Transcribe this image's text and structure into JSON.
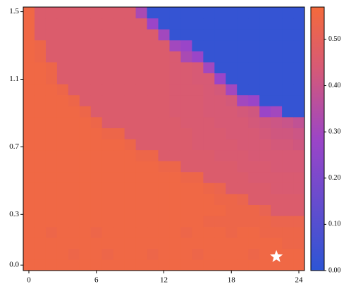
{
  "chart_data": {
    "type": "heatmap",
    "x": [
      0,
      1,
      2,
      3,
      4,
      5,
      6,
      7,
      8,
      9,
      10,
      11,
      12,
      13,
      14,
      15,
      16,
      17,
      18,
      19,
      20,
      21,
      22,
      23,
      24
    ],
    "y": [
      0,
      0.065,
      0.13,
      0.195,
      0.26,
      0.325,
      0.39,
      0.455,
      0.52,
      0.585,
      0.65,
      0.715,
      0.78,
      0.845,
      0.91,
      0.975,
      1.04,
      1.105,
      1.17,
      1.235,
      1.3,
      1.365,
      1.43,
      1.495
    ],
    "z": [
      [
        0.55,
        0.55,
        0.55,
        0.55,
        0.55,
        0.55,
        0.55,
        0.55,
        0.55,
        0.55,
        0.55,
        0.55,
        0.55,
        0.55,
        0.55,
        0.55,
        0.55,
        0.55,
        0.55,
        0.55,
        0.55,
        0.55,
        0.55,
        0.55,
        0.55
      ],
      [
        0.55,
        0.55,
        0.55,
        0.55,
        0.54,
        0.55,
        0.55,
        0.54,
        0.55,
        0.55,
        0.55,
        0.54,
        0.55,
        0.55,
        0.55,
        0.54,
        0.55,
        0.55,
        0.55,
        0.55,
        0.54,
        0.55,
        0.55,
        0.55,
        0.55
      ],
      [
        0.55,
        0.55,
        0.55,
        0.55,
        0.55,
        0.55,
        0.55,
        0.55,
        0.55,
        0.55,
        0.55,
        0.55,
        0.55,
        0.55,
        0.55,
        0.55,
        0.55,
        0.55,
        0.55,
        0.55,
        0.55,
        0.55,
        0.55,
        0.54,
        0.54
      ],
      [
        0.55,
        0.55,
        0.54,
        0.55,
        0.55,
        0.55,
        0.54,
        0.55,
        0.55,
        0.55,
        0.55,
        0.55,
        0.55,
        0.55,
        0.54,
        0.55,
        0.55,
        0.55,
        0.54,
        0.55,
        0.55,
        0.54,
        0.54,
        0.54,
        0.54
      ],
      [
        0.55,
        0.55,
        0.55,
        0.55,
        0.55,
        0.55,
        0.55,
        0.55,
        0.55,
        0.55,
        0.55,
        0.55,
        0.55,
        0.55,
        0.55,
        0.55,
        0.54,
        0.54,
        0.54,
        0.54,
        0.54,
        0.54,
        0.53,
        0.53,
        0.53
      ],
      [
        0.55,
        0.55,
        0.55,
        0.55,
        0.55,
        0.55,
        0.55,
        0.55,
        0.55,
        0.55,
        0.55,
        0.55,
        0.55,
        0.55,
        0.55,
        0.55,
        0.55,
        0.55,
        0.54,
        0.54,
        0.54,
        0.52,
        0.46,
        0.46,
        0.46
      ],
      [
        0.55,
        0.55,
        0.55,
        0.55,
        0.55,
        0.55,
        0.55,
        0.55,
        0.55,
        0.55,
        0.55,
        0.55,
        0.55,
        0.55,
        0.55,
        0.55,
        0.55,
        0.54,
        0.54,
        0.53,
        0.46,
        0.46,
        0.46,
        0.46,
        0.46
      ],
      [
        0.55,
        0.55,
        0.55,
        0.55,
        0.55,
        0.55,
        0.55,
        0.55,
        0.55,
        0.55,
        0.55,
        0.55,
        0.55,
        0.55,
        0.55,
        0.55,
        0.54,
        0.53,
        0.46,
        0.46,
        0.46,
        0.46,
        0.45,
        0.45,
        0.45
      ],
      [
        0.55,
        0.55,
        0.55,
        0.55,
        0.55,
        0.55,
        0.55,
        0.55,
        0.55,
        0.55,
        0.55,
        0.55,
        0.55,
        0.55,
        0.54,
        0.54,
        0.46,
        0.46,
        0.46,
        0.46,
        0.45,
        0.45,
        0.45,
        0.45,
        0.45
      ],
      [
        0.55,
        0.55,
        0.55,
        0.55,
        0.55,
        0.55,
        0.55,
        0.55,
        0.55,
        0.55,
        0.55,
        0.55,
        0.54,
        0.54,
        0.46,
        0.46,
        0.46,
        0.46,
        0.46,
        0.45,
        0.45,
        0.45,
        0.44,
        0.44,
        0.44
      ],
      [
        0.55,
        0.55,
        0.55,
        0.55,
        0.55,
        0.55,
        0.55,
        0.55,
        0.55,
        0.55,
        0.54,
        0.54,
        0.46,
        0.46,
        0.46,
        0.46,
        0.46,
        0.45,
        0.45,
        0.45,
        0.44,
        0.44,
        0.44,
        0.44,
        0.44
      ],
      [
        0.55,
        0.55,
        0.55,
        0.55,
        0.55,
        0.55,
        0.55,
        0.55,
        0.55,
        0.54,
        0.46,
        0.46,
        0.46,
        0.46,
        0.46,
        0.45,
        0.45,
        0.45,
        0.45,
        0.44,
        0.44,
        0.44,
        0.43,
        0.43,
        0.42
      ],
      [
        0.55,
        0.55,
        0.55,
        0.55,
        0.55,
        0.55,
        0.55,
        0.54,
        0.54,
        0.46,
        0.46,
        0.46,
        0.46,
        0.46,
        0.46,
        0.45,
        0.45,
        0.45,
        0.44,
        0.44,
        0.44,
        0.43,
        0.42,
        0.42,
        0.41
      ],
      [
        0.55,
        0.55,
        0.55,
        0.55,
        0.55,
        0.55,
        0.54,
        0.46,
        0.46,
        0.46,
        0.46,
        0.46,
        0.46,
        0.46,
        0.45,
        0.45,
        0.45,
        0.44,
        0.44,
        0.44,
        0.43,
        0.42,
        0.41,
        0.4,
        0.38
      ],
      [
        0.55,
        0.55,
        0.55,
        0.55,
        0.55,
        0.54,
        0.46,
        0.46,
        0.46,
        0.46,
        0.46,
        0.46,
        0.46,
        0.45,
        0.45,
        0.45,
        0.44,
        0.44,
        0.44,
        0.43,
        0.42,
        0.28,
        0.3,
        0.02,
        0.02
      ],
      [
        0.55,
        0.55,
        0.55,
        0.55,
        0.54,
        0.46,
        0.46,
        0.46,
        0.46,
        0.46,
        0.46,
        0.46,
        0.46,
        0.45,
        0.45,
        0.45,
        0.44,
        0.44,
        0.43,
        0.3,
        0.28,
        0.02,
        0.02,
        0.02,
        0.02
      ],
      [
        0.55,
        0.55,
        0.55,
        0.54,
        0.46,
        0.46,
        0.46,
        0.46,
        0.46,
        0.46,
        0.46,
        0.46,
        0.46,
        0.45,
        0.45,
        0.45,
        0.44,
        0.43,
        0.3,
        0.02,
        0.02,
        0.02,
        0.02,
        0.02,
        0.02
      ],
      [
        0.55,
        0.55,
        0.54,
        0.46,
        0.46,
        0.46,
        0.46,
        0.46,
        0.46,
        0.46,
        0.46,
        0.46,
        0.46,
        0.45,
        0.45,
        0.44,
        0.44,
        0.28,
        0.02,
        0.02,
        0.02,
        0.02,
        0.02,
        0.02,
        0.02
      ],
      [
        0.55,
        0.55,
        0.54,
        0.46,
        0.46,
        0.46,
        0.46,
        0.46,
        0.46,
        0.46,
        0.46,
        0.46,
        0.46,
        0.45,
        0.45,
        0.44,
        0.3,
        0.02,
        0.02,
        0.02,
        0.02,
        0.02,
        0.02,
        0.02,
        0.02
      ],
      [
        0.55,
        0.54,
        0.46,
        0.46,
        0.46,
        0.46,
        0.46,
        0.46,
        0.46,
        0.46,
        0.46,
        0.46,
        0.46,
        0.45,
        0.32,
        0.28,
        0.02,
        0.02,
        0.02,
        0.02,
        0.02,
        0.02,
        0.02,
        0.02,
        0.02
      ],
      [
        0.55,
        0.54,
        0.46,
        0.46,
        0.46,
        0.46,
        0.46,
        0.46,
        0.46,
        0.46,
        0.46,
        0.46,
        0.46,
        0.3,
        0.28,
        0.02,
        0.02,
        0.02,
        0.02,
        0.02,
        0.02,
        0.02,
        0.02,
        0.02,
        0.02
      ],
      [
        0.55,
        0.46,
        0.46,
        0.46,
        0.46,
        0.46,
        0.46,
        0.46,
        0.46,
        0.46,
        0.46,
        0.46,
        0.3,
        0.02,
        0.02,
        0.02,
        0.02,
        0.02,
        0.02,
        0.02,
        0.02,
        0.02,
        0.02,
        0.02,
        0.02
      ],
      [
        0.55,
        0.46,
        0.46,
        0.46,
        0.46,
        0.46,
        0.46,
        0.46,
        0.46,
        0.46,
        0.46,
        0.28,
        0.02,
        0.02,
        0.02,
        0.02,
        0.02,
        0.02,
        0.02,
        0.02,
        0.02,
        0.02,
        0.02,
        0.02,
        0.02
      ],
      [
        0.55,
        0.46,
        0.46,
        0.46,
        0.46,
        0.46,
        0.46,
        0.46,
        0.46,
        0.46,
        0.32,
        0.02,
        0.02,
        0.02,
        0.02,
        0.02,
        0.02,
        0.02,
        0.02,
        0.02,
        0.02,
        0.02,
        0.02,
        0.02,
        0.02
      ]
    ],
    "xlim": [
      -0.5,
      24.5
    ],
    "xticks": [
      0,
      6,
      12,
      18,
      24
    ],
    "ylim": [
      -0.0325,
      1.5275
    ],
    "yticks": [
      {
        "value": 0,
        "label": "0.0"
      },
      0.3,
      0.7,
      1.1,
      1.5
    ],
    "clim": [
      0,
      0.57
    ],
    "cticks": [
      {
        "value": 0,
        "label": "0.00"
      },
      {
        "value": 0.1,
        "label": "0.10"
      },
      {
        "value": 0.2,
        "label": "0.20"
      },
      {
        "value": 0.3,
        "label": "0.30"
      },
      {
        "value": 0.4,
        "label": "0.40"
      },
      {
        "value": 0.5,
        "label": "0.50"
      }
    ],
    "colormap": [
      [
        0,
        "#2d55d4"
      ],
      [
        0.28,
        "#9a45c8"
      ],
      [
        0.44,
        "#d75a75"
      ],
      [
        0.57,
        "#f46a3c"
      ]
    ],
    "marker": {
      "x": 22,
      "y": 0.05,
      "color": "#ffffff"
    }
  }
}
